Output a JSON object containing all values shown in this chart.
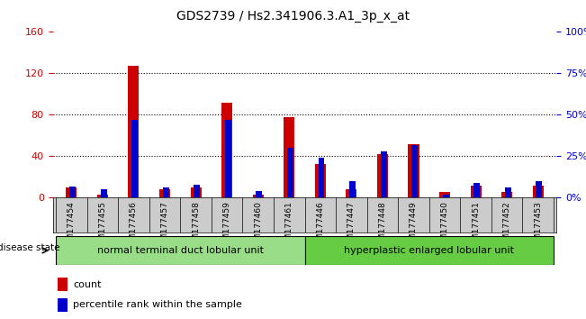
{
  "title": "GDS2739 / Hs2.341906.3.A1_3p_x_at",
  "samples": [
    "GSM177454",
    "GSM177455",
    "GSM177456",
    "GSM177457",
    "GSM177458",
    "GSM177459",
    "GSM177460",
    "GSM177461",
    "GSM177446",
    "GSM177447",
    "GSM177448",
    "GSM177449",
    "GSM177450",
    "GSM177451",
    "GSM177452",
    "GSM177453"
  ],
  "counts": [
    10,
    3,
    127,
    8,
    10,
    92,
    3,
    78,
    33,
    8,
    42,
    52,
    6,
    12,
    6,
    12
  ],
  "percentiles": [
    7,
    5,
    47,
    6,
    8,
    47,
    4,
    30,
    24,
    10,
    28,
    32,
    2,
    9,
    6,
    10
  ],
  "group1_label": "normal terminal duct lobular unit",
  "group2_label": "hyperplastic enlarged lobular unit",
  "group1_count": 8,
  "group2_count": 8,
  "disease_state_label": "disease state",
  "count_label": "count",
  "percentile_label": "percentile rank within the sample",
  "ylim_left": [
    0,
    160
  ],
  "ylim_right": [
    0,
    100
  ],
  "yticks_left": [
    0,
    40,
    80,
    120,
    160
  ],
  "yticks_right": [
    0,
    25,
    50,
    75,
    100
  ],
  "bar_color": "#cc0000",
  "percentile_color": "#0000cc",
  "group1_bg": "#99dd88",
  "group2_bg": "#66cc44",
  "xticklabel_bg": "#cccccc",
  "plot_bg": "#ffffff",
  "right_axis_color": "#0000cc",
  "left_axis_color": "#cc0000"
}
